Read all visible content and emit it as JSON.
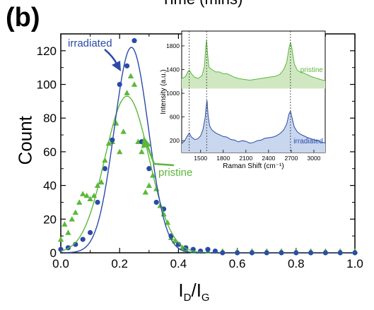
{
  "panel_label": "(b)",
  "top_title_fragment": "Time (mins)",
  "main_ylabel": "Count",
  "main_xlabel": {
    "main1": "I",
    "sub1": "D",
    "sep": "/I",
    "sub2": "G"
  },
  "annotations": {
    "irradiated": "irradiated",
    "pristine": "pristine"
  },
  "colors": {
    "irradiated": "#2a4aa8",
    "pristine": "#5ab83a"
  },
  "chart_data": [
    {
      "type": "scatter",
      "xlim": [
        0.0,
        1.0
      ],
      "ylim": [
        0,
        130
      ],
      "xticks": [
        "0.0",
        "0.2",
        "0.4",
        "0.6",
        "0.8",
        "1.0"
      ],
      "yticks": [
        "0",
        "20",
        "40",
        "60",
        "80",
        "100",
        "120"
      ],
      "series": [
        {
          "name": "irradiated",
          "kind": "points",
          "x": [
            0.0,
            0.025,
            0.05,
            0.075,
            0.1,
            0.125,
            0.15,
            0.175,
            0.2,
            0.225,
            0.25,
            0.275,
            0.3,
            0.325,
            0.35,
            0.375,
            0.4,
            0.425,
            0.45,
            0.475,
            0.5,
            0.525,
            0.55,
            0.6,
            0.65,
            0.7,
            0.75,
            0.8,
            0.85,
            0.9,
            0.95,
            1.0
          ],
          "y": [
            2,
            3,
            5,
            8,
            12,
            30,
            50,
            67,
            100,
            111,
            126,
            66,
            50,
            30,
            26,
            10,
            5,
            3,
            2,
            1,
            2,
            1,
            0,
            0,
            0,
            0,
            0,
            0,
            0,
            0,
            0,
            0
          ]
        },
        {
          "name": "pristine",
          "kind": "points",
          "x": [
            0.0,
            0.013,
            0.025,
            0.038,
            0.05,
            0.063,
            0.075,
            0.088,
            0.1,
            0.113,
            0.125,
            0.138,
            0.15,
            0.163,
            0.175,
            0.188,
            0.2,
            0.213,
            0.225,
            0.238,
            0.25,
            0.263,
            0.275,
            0.288,
            0.3,
            0.313,
            0.325,
            0.338,
            0.35,
            0.363,
            0.375,
            0.388,
            0.4,
            0.413,
            0.425,
            0.45,
            0.5,
            0.55,
            0.6,
            0.65,
            0.7,
            0.75,
            0.8,
            0.85,
            0.9,
            0.95,
            1.0
          ],
          "y": [
            8,
            17,
            12,
            20,
            24,
            30,
            35,
            34,
            32,
            34,
            40,
            42,
            55,
            65,
            66,
            77,
            60,
            72,
            95,
            105,
            100,
            66,
            60,
            36,
            40,
            46,
            38,
            28,
            23,
            18,
            9,
            7,
            5,
            3,
            2,
            1,
            1,
            1,
            1,
            1,
            1,
            1,
            1,
            1,
            1,
            1,
            1
          ]
        },
        {
          "name": "irradiated fit",
          "kind": "line",
          "fit": {
            "amplitude": 122,
            "center": 0.24,
            "sigma": 0.058
          }
        },
        {
          "name": "pristine fit",
          "kind": "line",
          "fit": {
            "amplitude": 93,
            "center": 0.225,
            "sigma": 0.075
          }
        }
      ]
    },
    {
      "type": "line",
      "xlabel": "Raman Shift (cm⁻¹)",
      "ylabel": "Intensity (a.u.)",
      "xlim": [
        1250,
        3150
      ],
      "ylim": [
        0,
        2050
      ],
      "xticks": [
        "1500",
        "1800",
        "2100",
        "2400",
        "2700",
        "3000"
      ],
      "yticks": [
        "200",
        "600",
        "1000",
        "1400",
        "1800"
      ],
      "vlines": [
        1350,
        1580,
        2690
      ],
      "series": [
        {
          "name": "pristine",
          "baseline": 1080,
          "x": [
            1250,
            1300,
            1330,
            1350,
            1380,
            1420,
            1470,
            1520,
            1550,
            1570,
            1580,
            1590,
            1610,
            1650,
            1700,
            1750,
            1800,
            1850,
            1900,
            1950,
            2000,
            2050,
            2100,
            2150,
            2200,
            2250,
            2300,
            2350,
            2400,
            2450,
            2500,
            2550,
            2600,
            2640,
            2670,
            2690,
            2710,
            2740,
            2780,
            2820,
            2870,
            2920,
            2970,
            3020,
            3070,
            3120,
            3150
          ],
          "y": [
            1250,
            1280,
            1360,
            1390,
            1330,
            1270,
            1250,
            1300,
            1450,
            1800,
            1900,
            1700,
            1440,
            1400,
            1360,
            1360,
            1330,
            1330,
            1300,
            1270,
            1250,
            1240,
            1230,
            1220,
            1230,
            1240,
            1250,
            1260,
            1270,
            1280,
            1290,
            1320,
            1400,
            1520,
            1760,
            1860,
            1750,
            1500,
            1390,
            1360,
            1340,
            1310,
            1280,
            1260,
            1240,
            1220,
            1210
          ]
        },
        {
          "name": "irradiated",
          "baseline": 0,
          "x": [
            1250,
            1290,
            1320,
            1350,
            1380,
            1420,
            1460,
            1500,
            1530,
            1560,
            1575,
            1585,
            1600,
            1620,
            1650,
            1700,
            1750,
            1800,
            1850,
            1900,
            1950,
            2000,
            2050,
            2100,
            2150,
            2200,
            2250,
            2300,
            2350,
            2400,
            2450,
            2500,
            2550,
            2600,
            2640,
            2670,
            2690,
            2710,
            2740,
            2780,
            2820,
            2870,
            2920,
            2970,
            3020,
            3070,
            3120,
            3150
          ],
          "y": [
            150,
            200,
            270,
            330,
            260,
            220,
            230,
            280,
            380,
            580,
            780,
            880,
            620,
            450,
            380,
            330,
            300,
            270,
            260,
            220,
            210,
            180,
            200,
            190,
            160,
            170,
            200,
            210,
            240,
            250,
            260,
            280,
            320,
            380,
            480,
            650,
            700,
            590,
            430,
            350,
            310,
            280,
            250,
            230,
            210,
            190,
            170,
            160
          ]
        }
      ],
      "labels": {
        "pristine": "pristine",
        "irradiated": "irradiated"
      }
    }
  ]
}
